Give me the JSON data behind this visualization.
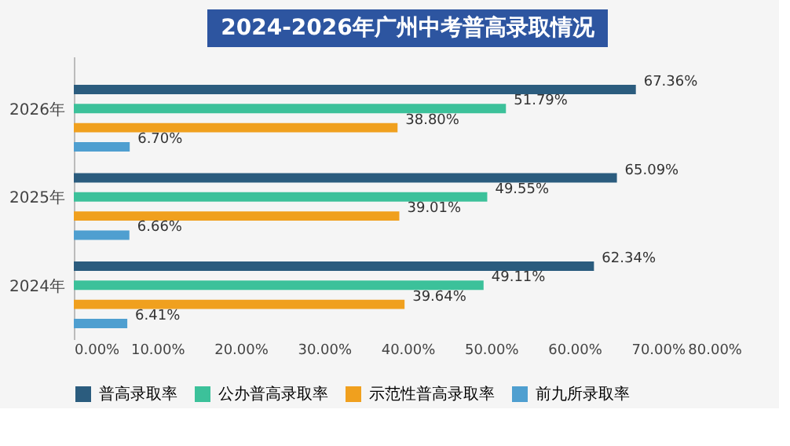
{
  "chart_data": {
    "type": "bar",
    "orientation": "horizontal",
    "title": "2024-2026年广州中考普高录取情况",
    "categories": [
      "2026年",
      "2025年",
      "2024年"
    ],
    "series": [
      {
        "name": "普高录取率",
        "color": "#2b5c7e",
        "values": [
          67.36,
          65.09,
          62.34
        ],
        "value_labels": [
          "67.36%",
          "65.09%",
          "62.34%"
        ]
      },
      {
        "name": "公办普高录取率",
        "color": "#3cc19a",
        "values": [
          51.79,
          49.55,
          49.11
        ],
        "value_labels": [
          "51.79%",
          "49.55%",
          "49.11%"
        ]
      },
      {
        "name": "示范性普高录取率",
        "color": "#f0a01e",
        "values": [
          38.8,
          39.01,
          39.64
        ],
        "value_labels": [
          "38.80%",
          "39.01%",
          "39.64%"
        ]
      },
      {
        "name": "前九所录取率",
        "color": "#4f9fd0",
        "values": [
          6.7,
          6.66,
          6.41
        ],
        "value_labels": [
          "6.70%",
          "6.66%",
          "6.41%"
        ]
      }
    ],
    "xlim": [
      0,
      80
    ],
    "xticks": [
      {
        "value": 0,
        "label": "0.00%"
      },
      {
        "value": 10,
        "label": "10.00%"
      },
      {
        "value": 20,
        "label": "20.00%"
      },
      {
        "value": 30,
        "label": "30.00%"
      },
      {
        "value": 40,
        "label": "40.00%"
      },
      {
        "value": 50,
        "label": "50.00%"
      },
      {
        "value": 60,
        "label": "60.00%"
      },
      {
        "value": 70,
        "label": "70.00%"
      },
      {
        "value": 80,
        "label": "80.00%"
      }
    ],
    "legend": "bottom",
    "grid": false
  }
}
